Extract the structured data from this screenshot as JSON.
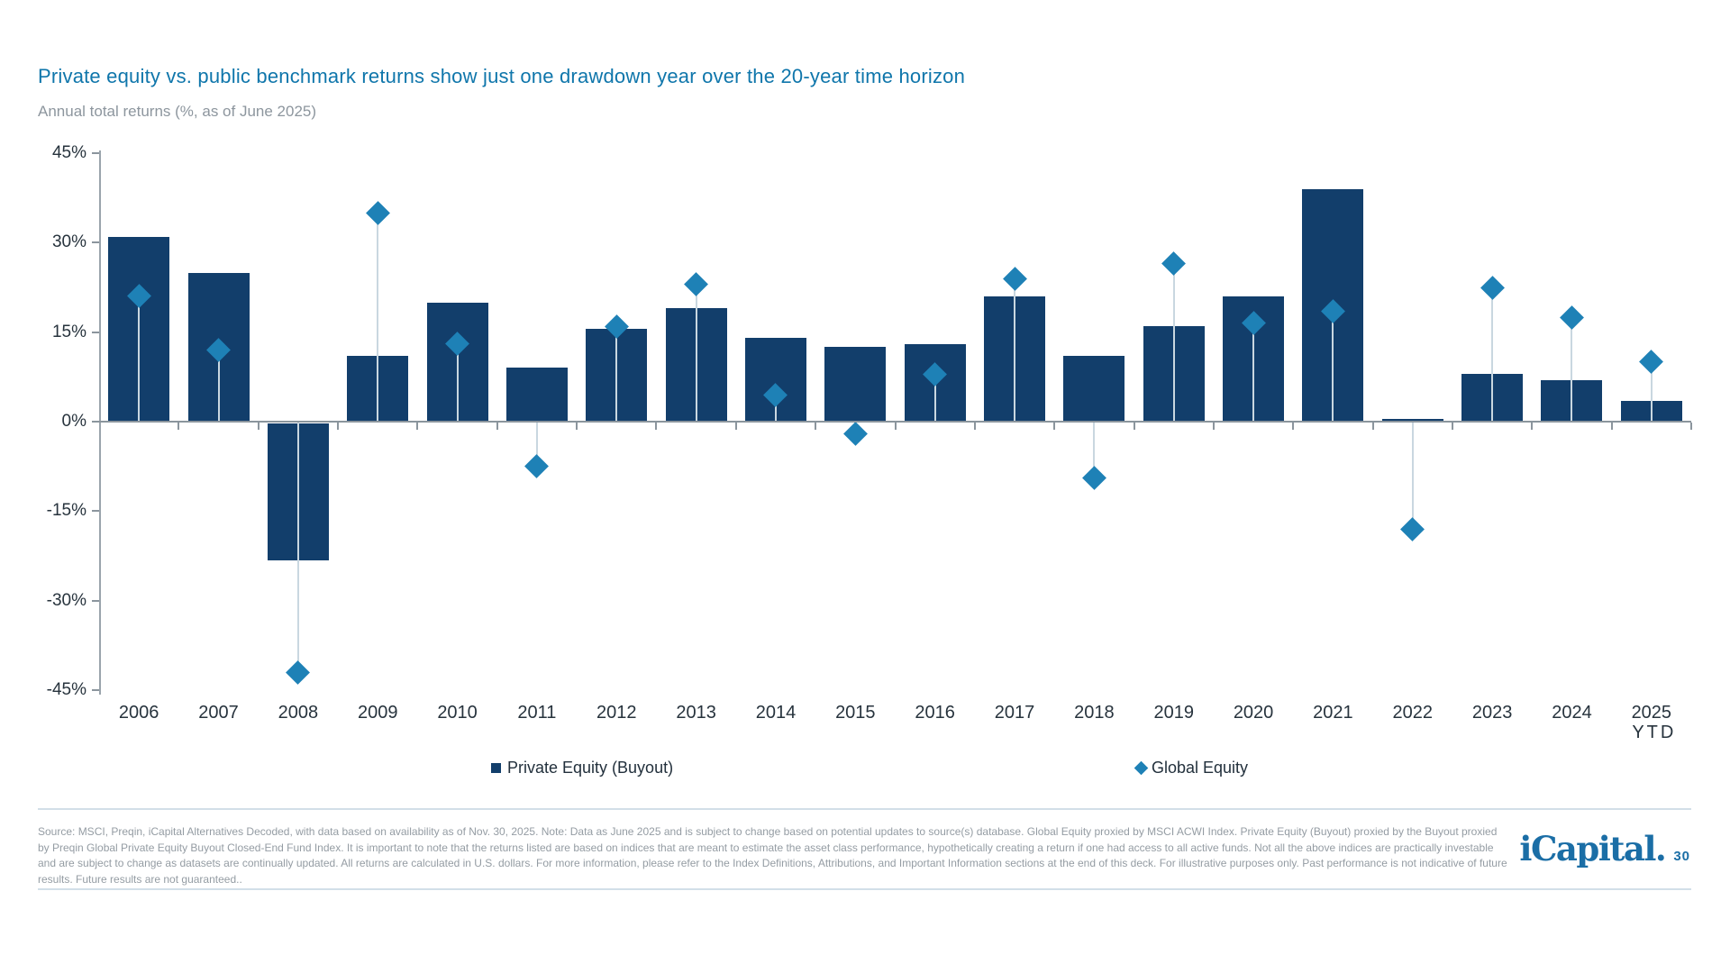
{
  "page": {
    "title": "Private equity vs. public benchmark returns show just one drawdown year over the 20-year time horizon",
    "subtitle": "Annual total returns (%, as of June 2025)"
  },
  "chart_data": {
    "type": "bar",
    "title": "Private equity vs. public benchmark returns show just one drawdown year over the 20-year time horizon",
    "ylabel": "Annual total returns (%, as of June 2025)",
    "xlabel": "",
    "ylim": [
      -45,
      45
    ],
    "grid": false,
    "legend_position": "bottom",
    "y_ticks": [
      45,
      30,
      15,
      0,
      -15,
      -30,
      -45
    ],
    "y_tick_labels": [
      "45%",
      "30%",
      "15%",
      "0%",
      "-15%",
      "-30%",
      "-45%"
    ],
    "categories": [
      "2006",
      "2007",
      "2008",
      "2009",
      "2010",
      "2011",
      "2012",
      "2013",
      "2014",
      "2015",
      "2016",
      "2017",
      "2018",
      "2019",
      "2020",
      "2021",
      "2022",
      "2023",
      "2024",
      "2025 YTD"
    ],
    "series": [
      {
        "name": "Private Equity (Buyout)",
        "type": "bar",
        "marker": "square",
        "values": [
          31,
          25,
          -23,
          11,
          20,
          9,
          15.5,
          19,
          14,
          12.5,
          13,
          21,
          11,
          16,
          21,
          39,
          0.5,
          8,
          7,
          3.5
        ]
      },
      {
        "name": "Global Equity",
        "type": "scatter",
        "marker": "diamond",
        "values": [
          21,
          12,
          -42,
          35,
          13,
          -7.5,
          16,
          23,
          4.5,
          -2,
          8,
          24,
          -9.5,
          26.5,
          16.5,
          18.5,
          -18,
          22.5,
          17.5,
          10
        ]
      }
    ]
  },
  "footer": {
    "source_text": "Source: MSCI, Preqin, iCapital Alternatives Decoded, with data based on availability as of Nov. 30, 2025. Note: Data as June 2025 and is subject to change based on potential updates to source(s) database. Global Equity proxied by MSCI ACWI Index. Private Equity (Buyout) proxied by the Buyout proxied by Preqin Global Private Equity Buyout Closed-End Fund Index. It is important to note that the returns listed are based on indices that are meant to estimate the asset class performance, hypothetically creating a return if one had access to all active funds. Not all the above indices are practically investable and are subject to change as datasets are continually updated. All returns are calculated in U.S. dollars. For more information, please refer to the Index Definitions, Attributions, and Important Information sections at the end of this deck. For illustrative purposes only. Past performance is not indicative of future results. Future results are not guaranteed..",
    "logo": "iCapital",
    "logo_suffix": ".",
    "page_number": "30"
  },
  "colors": {
    "bar": "#123e6b",
    "diamond": "#1e81b6",
    "title": "#0f76ab",
    "axis": "#8b959d",
    "stem": "#c9d7e0",
    "logo": "#1b6ea6"
  }
}
